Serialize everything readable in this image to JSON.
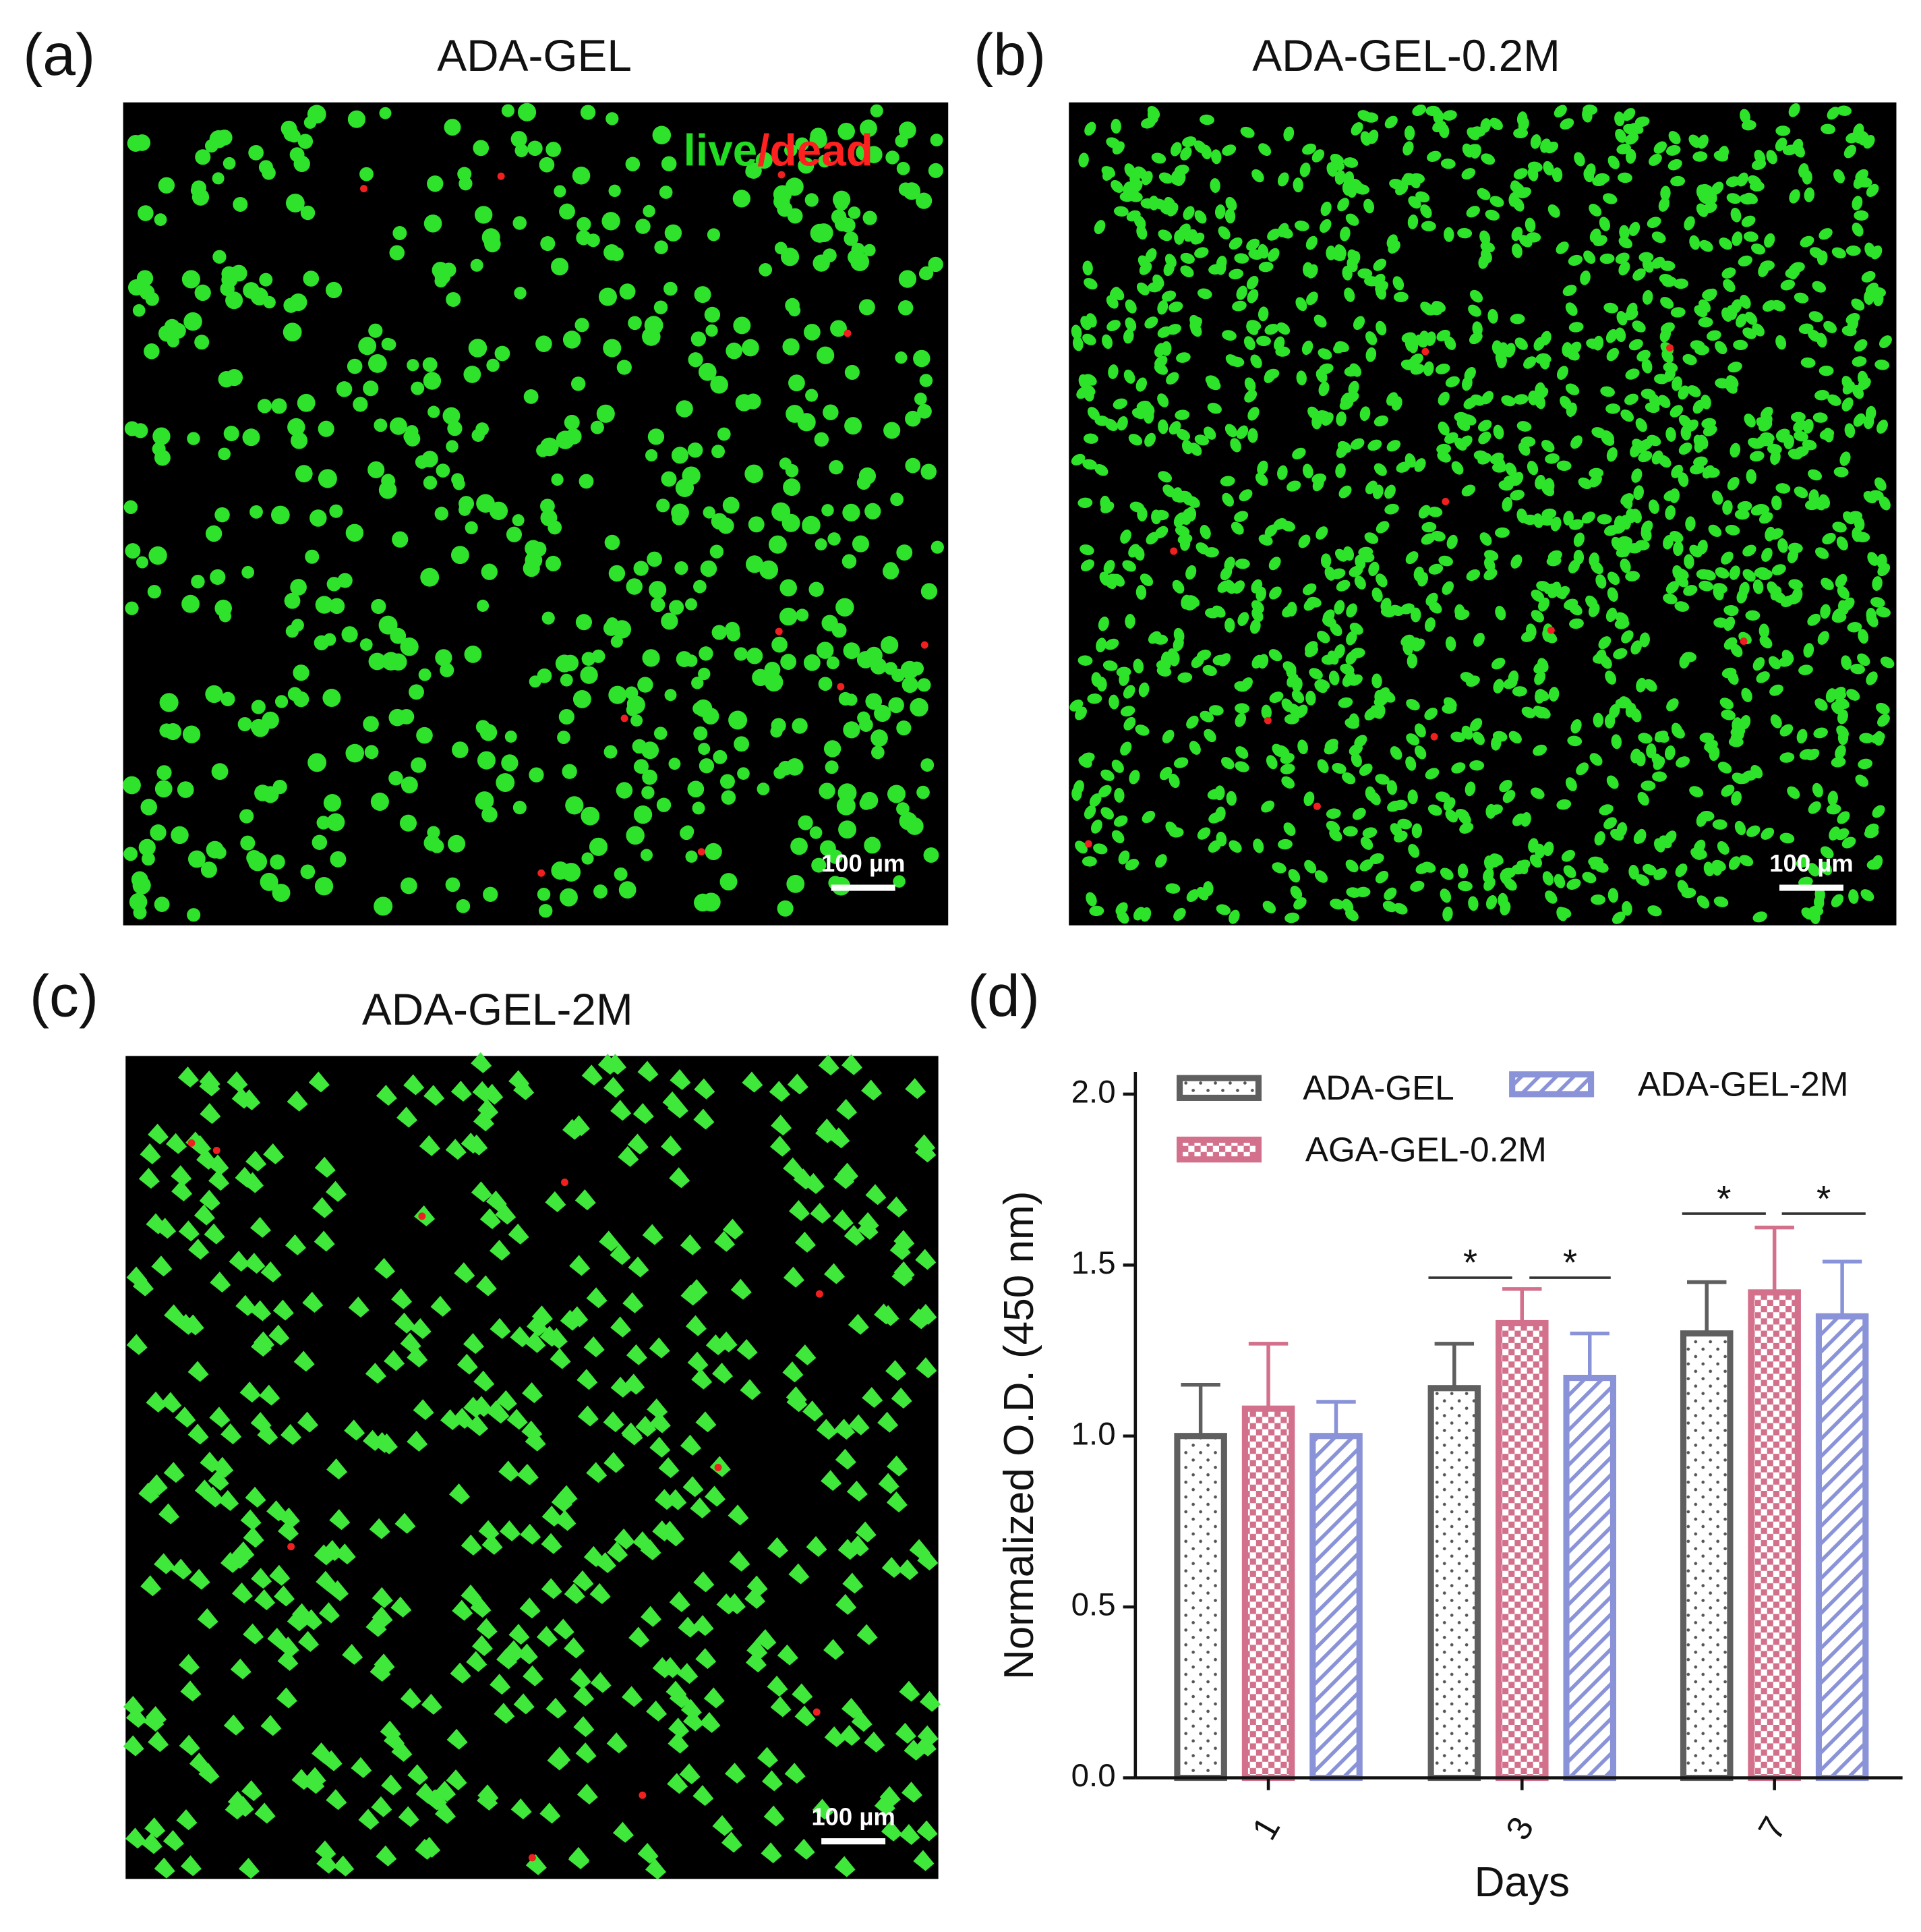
{
  "panels": [
    {
      "label": "(a)",
      "title": "ADA-GEL",
      "scale_bar": "100 µm",
      "stain_live": "live",
      "stain_dead": "/dead"
    },
    {
      "label": "(b)",
      "title": "ADA-GEL-0.2M",
      "scale_bar": "100 µm"
    },
    {
      "label": "(c)",
      "title": "ADA-GEL-2M",
      "scale_bar": "100 µm"
    },
    {
      "label": "(d)"
    }
  ],
  "chart_data": {
    "type": "bar",
    "x_label": "Days",
    "y_label": "Normalized O.D. (450 nm)",
    "categories": [
      "1",
      "3",
      "7"
    ],
    "series": [
      {
        "name": "ADA-GEL",
        "color": "#5f5f5f",
        "values": [
          1.0,
          1.14,
          1.3
        ],
        "errors": [
          0.15,
          0.13,
          0.15
        ]
      },
      {
        "name": "AGA-GEL-0.2M",
        "color": "#d3708c",
        "values": [
          1.08,
          1.33,
          1.42
        ],
        "errors": [
          0.19,
          0.1,
          0.19
        ]
      },
      {
        "name": "ADA-GEL-2M",
        "color": "#8a93d8",
        "values": [
          1.0,
          1.17,
          1.35
        ],
        "errors": [
          0.1,
          0.13,
          0.16
        ]
      }
    ],
    "ylim": [
      0,
      2.0
    ],
    "yticks": [
      {
        "value": 0,
        "label": "0.0"
      },
      {
        "value": 0.5,
        "label": "0.5"
      },
      {
        "value": 1.0,
        "label": "1.0"
      },
      {
        "value": 1.5,
        "label": "1.5"
      },
      {
        "value": 2.0,
        "label": "2.0"
      }
    ],
    "annotations": [
      "*",
      "*",
      "*",
      "*"
    ]
  }
}
